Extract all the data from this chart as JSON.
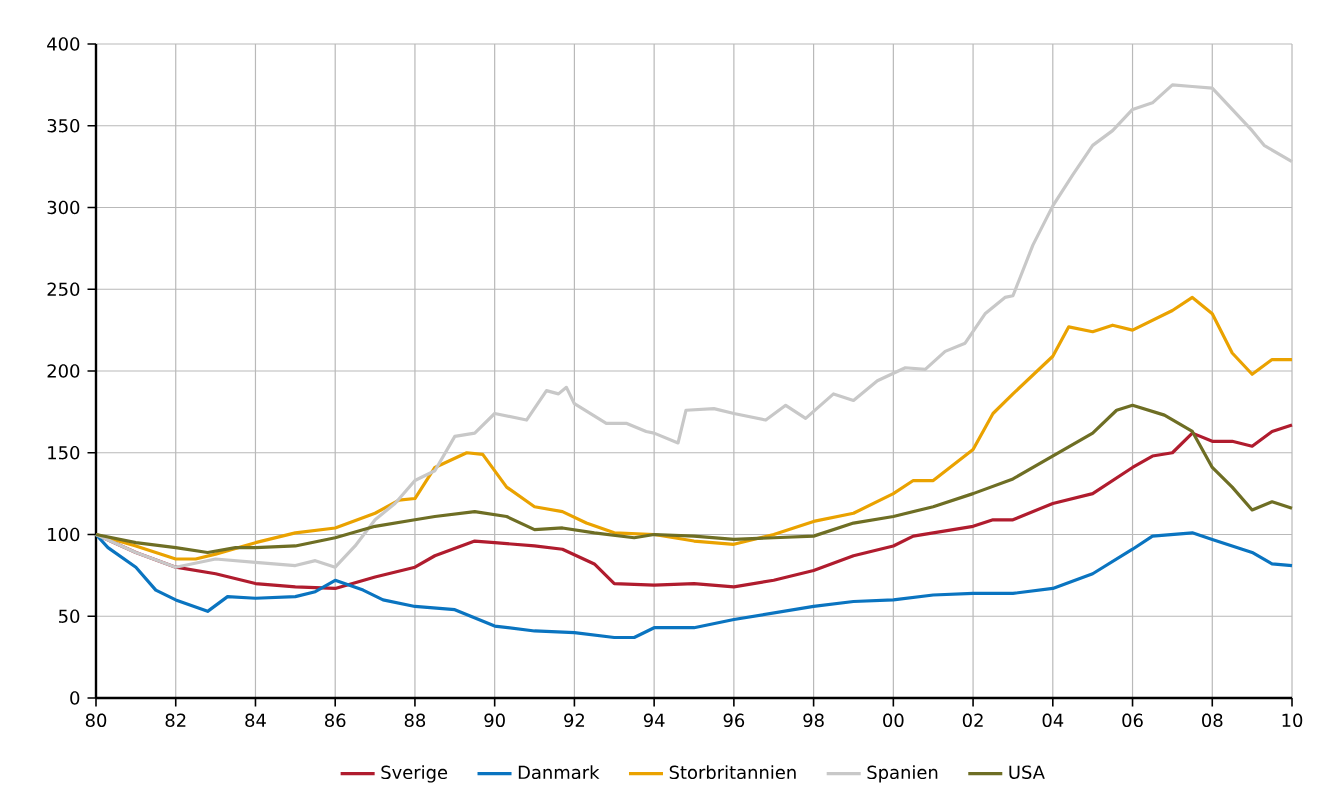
{
  "chart_data": {
    "type": "line",
    "xlim": [
      1980,
      2010
    ],
    "ylim": [
      0,
      400
    ],
    "xticks": [
      {
        "value": 1980,
        "label": "80"
      },
      {
        "value": 1982,
        "label": "82"
      },
      {
        "value": 1984,
        "label": "84"
      },
      {
        "value": 1986,
        "label": "86"
      },
      {
        "value": 1988,
        "label": "88"
      },
      {
        "value": 1990,
        "label": "90"
      },
      {
        "value": 1992,
        "label": "92"
      },
      {
        "value": 1994,
        "label": "94"
      },
      {
        "value": 1996,
        "label": "96"
      },
      {
        "value": 1998,
        "label": "98"
      },
      {
        "value": 2000,
        "label": "00"
      },
      {
        "value": 2002,
        "label": "02"
      },
      {
        "value": 2004,
        "label": "04"
      },
      {
        "value": 2006,
        "label": "06"
      },
      {
        "value": 2008,
        "label": "08"
      },
      {
        "value": 2010,
        "label": "10"
      }
    ],
    "yticks": [
      0,
      50,
      100,
      150,
      200,
      250,
      300,
      350,
      400
    ],
    "grid": true,
    "legend": "bottom",
    "marker": "none",
    "line_style": "solid",
    "series": [
      {
        "name": "Sverige",
        "color": "#b01c2e",
        "x": [
          1980,
          1981,
          1982,
          1983,
          1984,
          1985,
          1986,
          1987,
          1988,
          1988.5,
          1989.5,
          1990,
          1991,
          1991.7,
          1992.5,
          1993,
          1994,
          1995,
          1996,
          1997,
          1998,
          1999,
          2000,
          2000.5,
          2001,
          2002,
          2002.5,
          2003,
          2004,
          2005,
          2006,
          2006.5,
          2007,
          2007.5,
          2008,
          2008.5,
          2009,
          2009.5,
          2010
        ],
        "values": [
          100,
          89,
          80,
          76,
          70,
          68,
          67,
          74,
          80,
          87,
          96,
          95,
          93,
          91,
          82,
          70,
          69,
          70,
          68,
          72,
          78,
          87,
          93,
          99,
          101,
          105,
          109,
          109,
          119,
          125,
          141,
          148,
          150,
          162,
          157,
          157,
          154,
          163,
          167
        ]
      },
      {
        "name": "Danmark",
        "color": "#0a74c0",
        "x": [
          1980,
          1980.3,
          1981,
          1981.5,
          1982,
          1982.8,
          1983.3,
          1984,
          1985,
          1985.5,
          1986,
          1986.7,
          1987.2,
          1988,
          1989,
          1990,
          1991,
          1992,
          1993,
          1993.5,
          1994,
          1995,
          1996,
          1997,
          1998,
          1999,
          2000,
          2001,
          2002,
          2003,
          2004,
          2005,
          2006,
          2006.5,
          2007.5,
          2008,
          2009,
          2009.5,
          2010
        ],
        "values": [
          100,
          92,
          80,
          66,
          60,
          53,
          62,
          61,
          62,
          65,
          72,
          66,
          60,
          56,
          54,
          44,
          41,
          40,
          37,
          37,
          43,
          43,
          48,
          52,
          56,
          59,
          60,
          63,
          64,
          64,
          67,
          76,
          91,
          99,
          101,
          97,
          89,
          82,
          81
        ]
      },
      {
        "name": "Storbritannien",
        "color": "#eaa200",
        "x": [
          1980,
          1981,
          1982,
          1982.5,
          1983,
          1984,
          1985,
          1986,
          1987,
          1987.6,
          1988,
          1988.5,
          1989.3,
          1989.7,
          1990.3,
          1991,
          1991.7,
          1992.3,
          1993,
          1994,
          1995,
          1996,
          1997,
          1998,
          1999,
          2000,
          2000.5,
          2001,
          2002,
          2002.5,
          2003,
          2004,
          2004.4,
          2005,
          2005.5,
          2006,
          2007,
          2007.5,
          2008,
          2008.5,
          2009,
          2009.5,
          2010
        ],
        "values": [
          100,
          93,
          85,
          85,
          88,
          95,
          101,
          104,
          113,
          121,
          122,
          141,
          150,
          149,
          129,
          117,
          114,
          107,
          101,
          100,
          96,
          94,
          100,
          108,
          113,
          125,
          133,
          133,
          152,
          174,
          186,
          209,
          227,
          224,
          228,
          225,
          237,
          245,
          235,
          211,
          198,
          207,
          207
        ]
      },
      {
        "name": "Spanien",
        "color": "#c8c8c8",
        "x": [
          1980,
          1981,
          1982,
          1983,
          1984,
          1985,
          1985.5,
          1986,
          1986.5,
          1987,
          1987.5,
          1988,
          1988.5,
          1989,
          1989.5,
          1990,
          1990.8,
          1991.3,
          1991.6,
          1991.8,
          1992,
          1992.8,
          1993.3,
          1993.8,
          1994,
          1994.6,
          1994.8,
          1995.5,
          1996,
          1996.8,
          1997.3,
          1997.8,
          1998.5,
          1999,
          1999.6,
          2000.3,
          2000.8,
          2001.3,
          2001.8,
          2002.3,
          2002.8,
          2003,
          2003.5,
          2004,
          2004.5,
          2005,
          2005.5,
          2006,
          2006.5,
          2007,
          2007.5,
          2008,
          2008.5,
          2009,
          2009.3,
          2010
        ],
        "values": [
          100,
          89,
          80,
          85,
          83,
          81,
          84,
          80,
          93,
          109,
          119,
          133,
          139,
          160,
          162,
          174,
          170,
          188,
          186,
          190,
          180,
          168,
          168,
          163,
          162,
          156,
          176,
          177,
          174,
          170,
          179,
          171,
          186,
          182,
          194,
          202,
          201,
          212,
          217,
          235,
          245,
          246,
          277,
          301,
          320,
          338,
          347,
          360,
          364,
          375,
          374,
          373,
          360,
          347,
          338,
          328
        ]
      },
      {
        "name": "USA",
        "color": "#6e6e24",
        "x": [
          1980,
          1981,
          1982,
          1982.8,
          1983.5,
          1984,
          1985,
          1986,
          1987,
          1988,
          1988.5,
          1989.5,
          1990.3,
          1991,
          1991.7,
          1992.5,
          1993.5,
          1994,
          1995,
          1996,
          1997,
          1998,
          1999,
          2000,
          2001,
          2002,
          2003,
          2004,
          2005,
          2005.6,
          2006,
          2006.8,
          2007.5,
          2008,
          2008.5,
          2009,
          2009.5,
          2010
        ],
        "values": [
          100,
          95,
          92,
          89,
          92,
          92,
          93,
          98,
          105,
          109,
          111,
          114,
          111,
          103,
          104,
          101,
          98,
          100,
          99,
          97,
          98,
          99,
          107,
          111,
          117,
          125,
          134,
          148,
          162,
          176,
          179,
          173,
          163,
          141,
          129,
          115,
          120,
          116
        ]
      }
    ]
  }
}
